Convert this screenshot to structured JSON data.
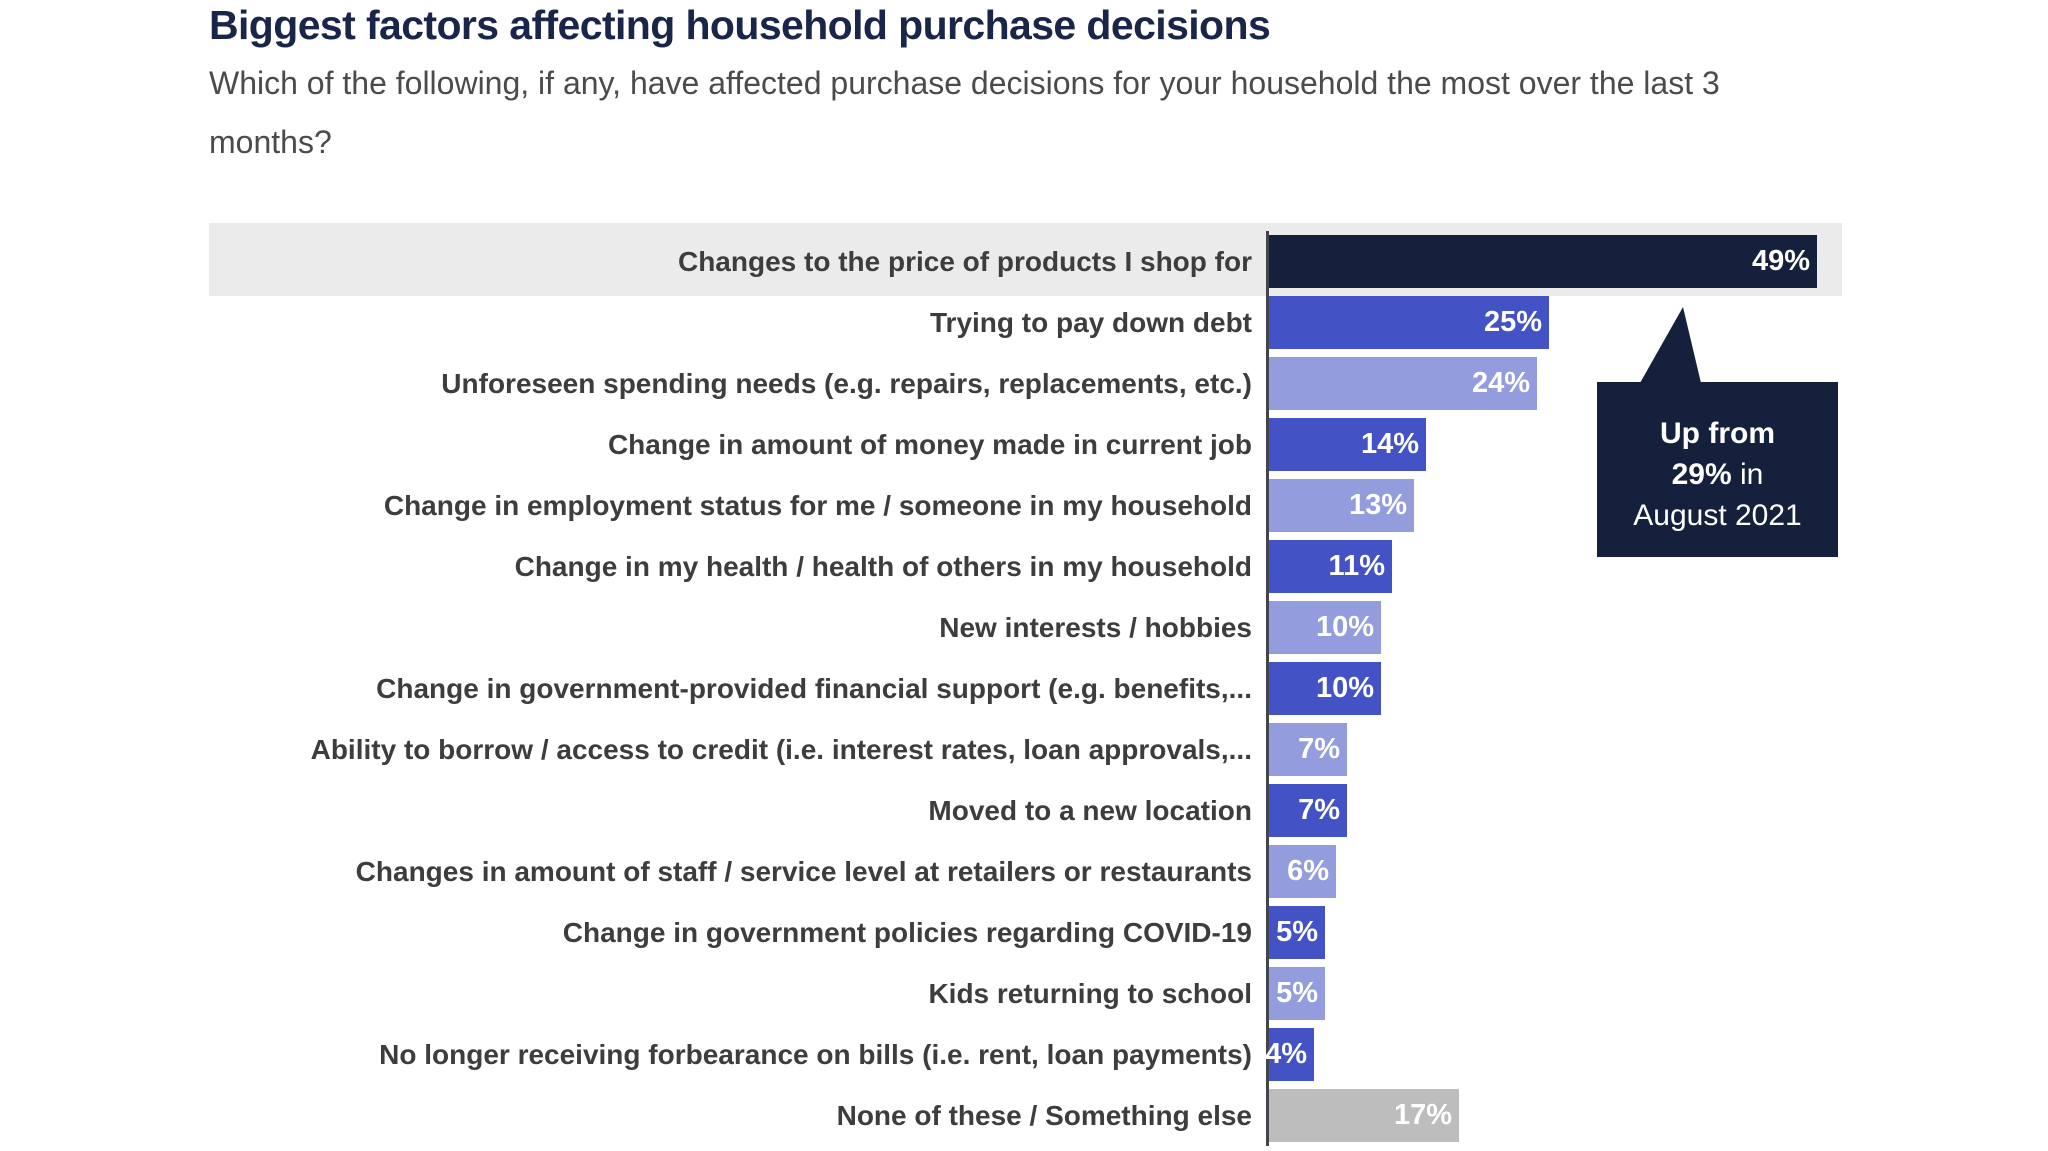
{
  "header": {
    "title": "Biggest factors affecting household purchase decisions",
    "subtitle": "Which of the following, if any, have affected purchase decisions for your household the most over the last 3 months?"
  },
  "palette": {
    "navy": "#15213C",
    "blue": "#4353C5",
    "periwinkle": "#939CDC",
    "gray": "#BDBDBD",
    "highlight_bg": "#EBEBEB",
    "axis_line": "#44444B",
    "title_color": "#1A2649",
    "label_color": "#3d3d3d",
    "value_text": "#ffffff"
  },
  "chart_data": {
    "type": "bar",
    "orientation": "horizontal",
    "title": "Biggest factors affecting household purchase decisions",
    "xlabel": "",
    "ylabel": "",
    "xlim": [
      0,
      49
    ],
    "grid": false,
    "value_labels_position": "inside-end",
    "categories": [
      "Changes to the price of products I shop for",
      "Trying to pay down debt",
      "Unforeseen spending needs (e.g. repairs, replacements, etc.)",
      "Change in amount of money made in current job",
      "Change in employment status for me / someone in my household",
      "Change in my health / health of others in my household",
      "New interests / hobbies",
      "Change in government-provided financial support (e.g. benefits,...",
      "Ability to borrow / access to credit (i.e. interest rates, loan approvals,...",
      "Moved to a new location",
      "Changes in amount of staff / service level at retailers or restaurants",
      "Change in government policies regarding COVID-19",
      "Kids returning to school",
      "No longer receiving forbearance on bills (i.e. rent, loan payments)",
      "None of these / Something else"
    ],
    "values": [
      49,
      25,
      24,
      14,
      13,
      11,
      10,
      10,
      7,
      7,
      6,
      5,
      5,
      4,
      17
    ],
    "value_labels": [
      "49%",
      "25%",
      "24%",
      "14%",
      "13%",
      "11%",
      "10%",
      "10%",
      "7%",
      "7%",
      "6%",
      "5%",
      "5%",
      "4%",
      "17%"
    ],
    "color_keys": [
      "navy",
      "blue",
      "periwinkle",
      "blue",
      "periwinkle",
      "blue",
      "periwinkle",
      "blue",
      "periwinkle",
      "blue",
      "periwinkle",
      "blue",
      "periwinkle",
      "blue",
      "gray"
    ],
    "highlighted_row_index": 0,
    "annotation": "Up from 29% in August 2021"
  },
  "callout": {
    "line1_bold": "Up from",
    "line2_bold": "29%",
    "line2_rest": " in",
    "line3": "August 2021"
  }
}
